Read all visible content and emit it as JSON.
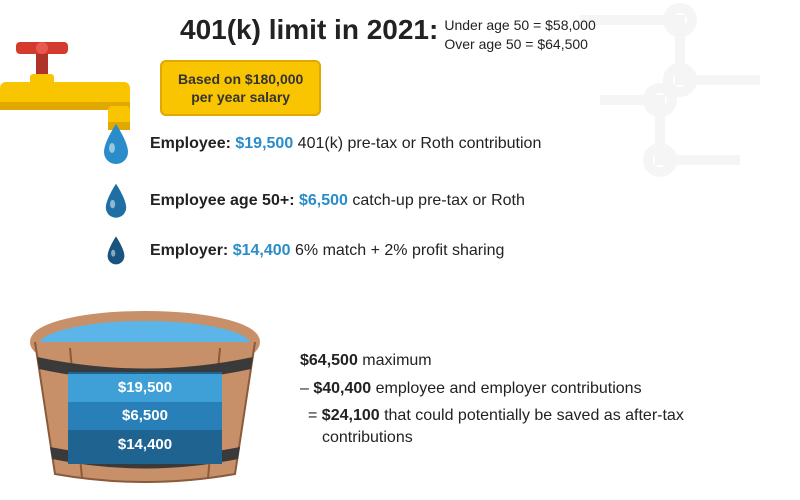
{
  "header": {
    "title": "401(k) limit in 2021:",
    "under50_label": "Under age 50 = ",
    "under50_amount": "$58,000",
    "over50_label": "Over age 50 = ",
    "over50_amount": "$64,500",
    "title_fontsize": 28,
    "sub_fontsize": 14,
    "title_color": "#222222"
  },
  "salary_badge": {
    "line1": "Based on $180,000",
    "line2": "per year salary",
    "bg_color": "#f9c400",
    "border_color": "#e0a800",
    "text_color": "#333333",
    "fontsize": 14
  },
  "faucet": {
    "valve_color": "#d43a2e",
    "pipe_color": "#f9c400",
    "pipe_shadow": "#e0a800"
  },
  "drops": [
    {
      "label": "Employee:",
      "amount": "$19,500",
      "desc": " 401(k) pre-tax or Roth contribution",
      "size": 1.0,
      "fill": "#2a8cc9"
    },
    {
      "label": "Employee age 50+:",
      "amount": "$6,500",
      "desc": " catch-up pre-tax or Roth",
      "size": 0.85,
      "fill": "#1f6fa5"
    },
    {
      "label": "Employer:",
      "amount": "$14,400",
      "desc": " 6% match + 2% profit sharing",
      "size": 0.7,
      "fill": "#18547e"
    }
  ],
  "drop_style": {
    "amount_color": "#2a8cc9",
    "text_fontsize": 16
  },
  "bucket": {
    "wood_light": "#c89068",
    "wood_dark": "#8a5a3a",
    "band_color": "#3a3a3a",
    "water_top": "#5bb5e8",
    "layers": [
      {
        "label": "$19,500",
        "color": "#3fa0d8",
        "height": 28
      },
      {
        "label": "$6,500",
        "color": "#2980b9",
        "height": 28
      },
      {
        "label": "$14,400",
        "color": "#1f6391",
        "height": 30
      }
    ],
    "layer_fontsize": 15,
    "layer_text_color": "#ffffff"
  },
  "math": {
    "lines": [
      {
        "prefix": "",
        "amount": "$64,500",
        "suffix": " maximum"
      },
      {
        "prefix": "– ",
        "amount": "$40,400",
        "suffix": " employee and employer contributions"
      },
      {
        "prefix": "= ",
        "amount": "$24,100",
        "suffix": " that could potentially be saved as after-tax contributions"
      }
    ],
    "fontsize": 16,
    "text_color": "#222222"
  },
  "background": "#ffffff"
}
